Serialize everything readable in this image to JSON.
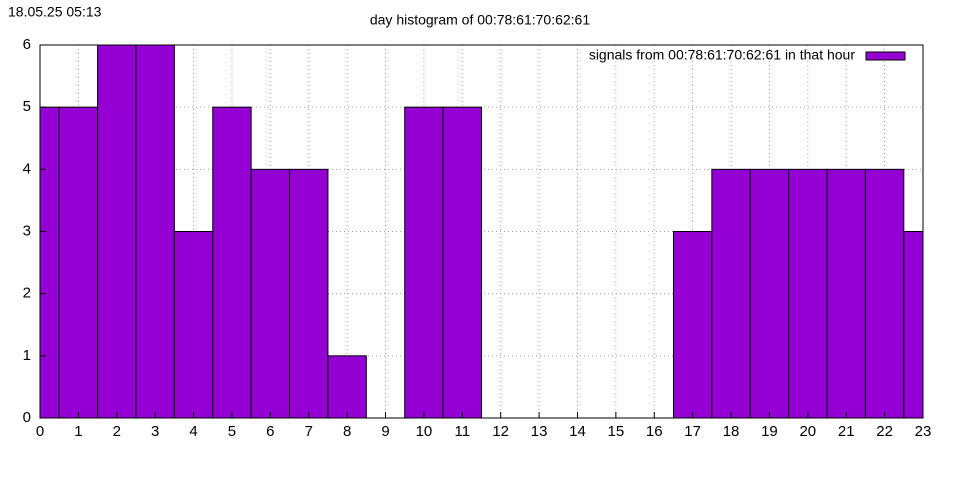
{
  "chart_data": {
    "type": "bar",
    "timestamp": "18.05.25 05:13",
    "title": "day histogram of 00:78:61:70:62:61",
    "series": [
      {
        "name": "signals from 00:78:61:70:62:61 in that hour",
        "color": "#9400d3",
        "values": [
          5,
          5,
          6,
          6,
          3,
          5,
          4,
          4,
          1,
          0,
          5,
          5,
          0,
          0,
          0,
          0,
          0,
          3,
          4,
          4,
          4,
          4,
          4,
          3
        ]
      }
    ],
    "x": [
      0,
      1,
      2,
      3,
      4,
      5,
      6,
      7,
      8,
      9,
      10,
      11,
      12,
      13,
      14,
      15,
      16,
      17,
      18,
      19,
      20,
      21,
      22,
      23
    ],
    "xlim": [
      0,
      23
    ],
    "xticks": [
      0,
      1,
      2,
      3,
      4,
      5,
      6,
      7,
      8,
      9,
      10,
      11,
      12,
      13,
      14,
      15,
      16,
      17,
      18,
      19,
      20,
      21,
      22,
      23
    ],
    "ylim": [
      0,
      6
    ],
    "yticks": [
      0,
      1,
      2,
      3,
      4,
      5,
      6
    ],
    "grid": true,
    "legend": "top-right"
  }
}
